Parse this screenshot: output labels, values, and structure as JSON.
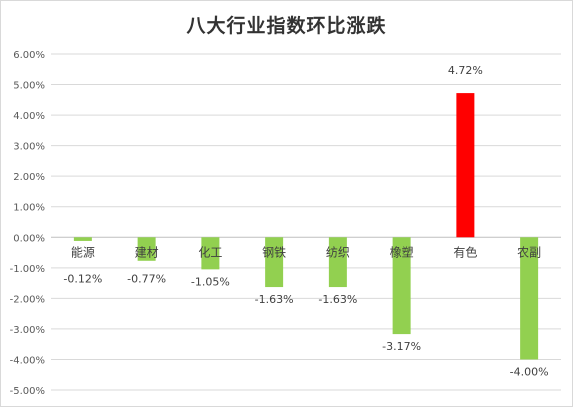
{
  "chart_data": {
    "type": "bar",
    "title": "八大行业指数环比涨跌",
    "xlabel": "",
    "ylabel": "",
    "categories": [
      "能源",
      "建材",
      "化工",
      "钢铁",
      "纺织",
      "橡塑",
      "有色",
      "农副"
    ],
    "values": [
      -0.12,
      -0.77,
      -1.05,
      -1.63,
      -1.63,
      -3.17,
      4.72,
      -4.0
    ],
    "data_labels": [
      "-0.12%",
      "-0.77%",
      "-1.05%",
      "-1.63%",
      "-1.63%",
      "-3.17%",
      "4.72%",
      "-4.00%"
    ],
    "ylim": [
      -5,
      6
    ],
    "yticks": [
      6,
      5,
      4,
      3,
      2,
      1,
      0,
      -1,
      -2,
      -3,
      -4,
      -5
    ],
    "ytick_labels": [
      "6.00%",
      "5.00%",
      "4.00%",
      "3.00%",
      "2.00%",
      "1.00%",
      "0.00%",
      "-1.00%",
      "-2.00%",
      "-3.00%",
      "-4.00%",
      "-5.00%"
    ],
    "grid": true,
    "legend": "none",
    "colors": {
      "negative": "#92d050",
      "positive": "#ff0000",
      "grid": "#d9d9d9",
      "text": "#595959"
    }
  }
}
